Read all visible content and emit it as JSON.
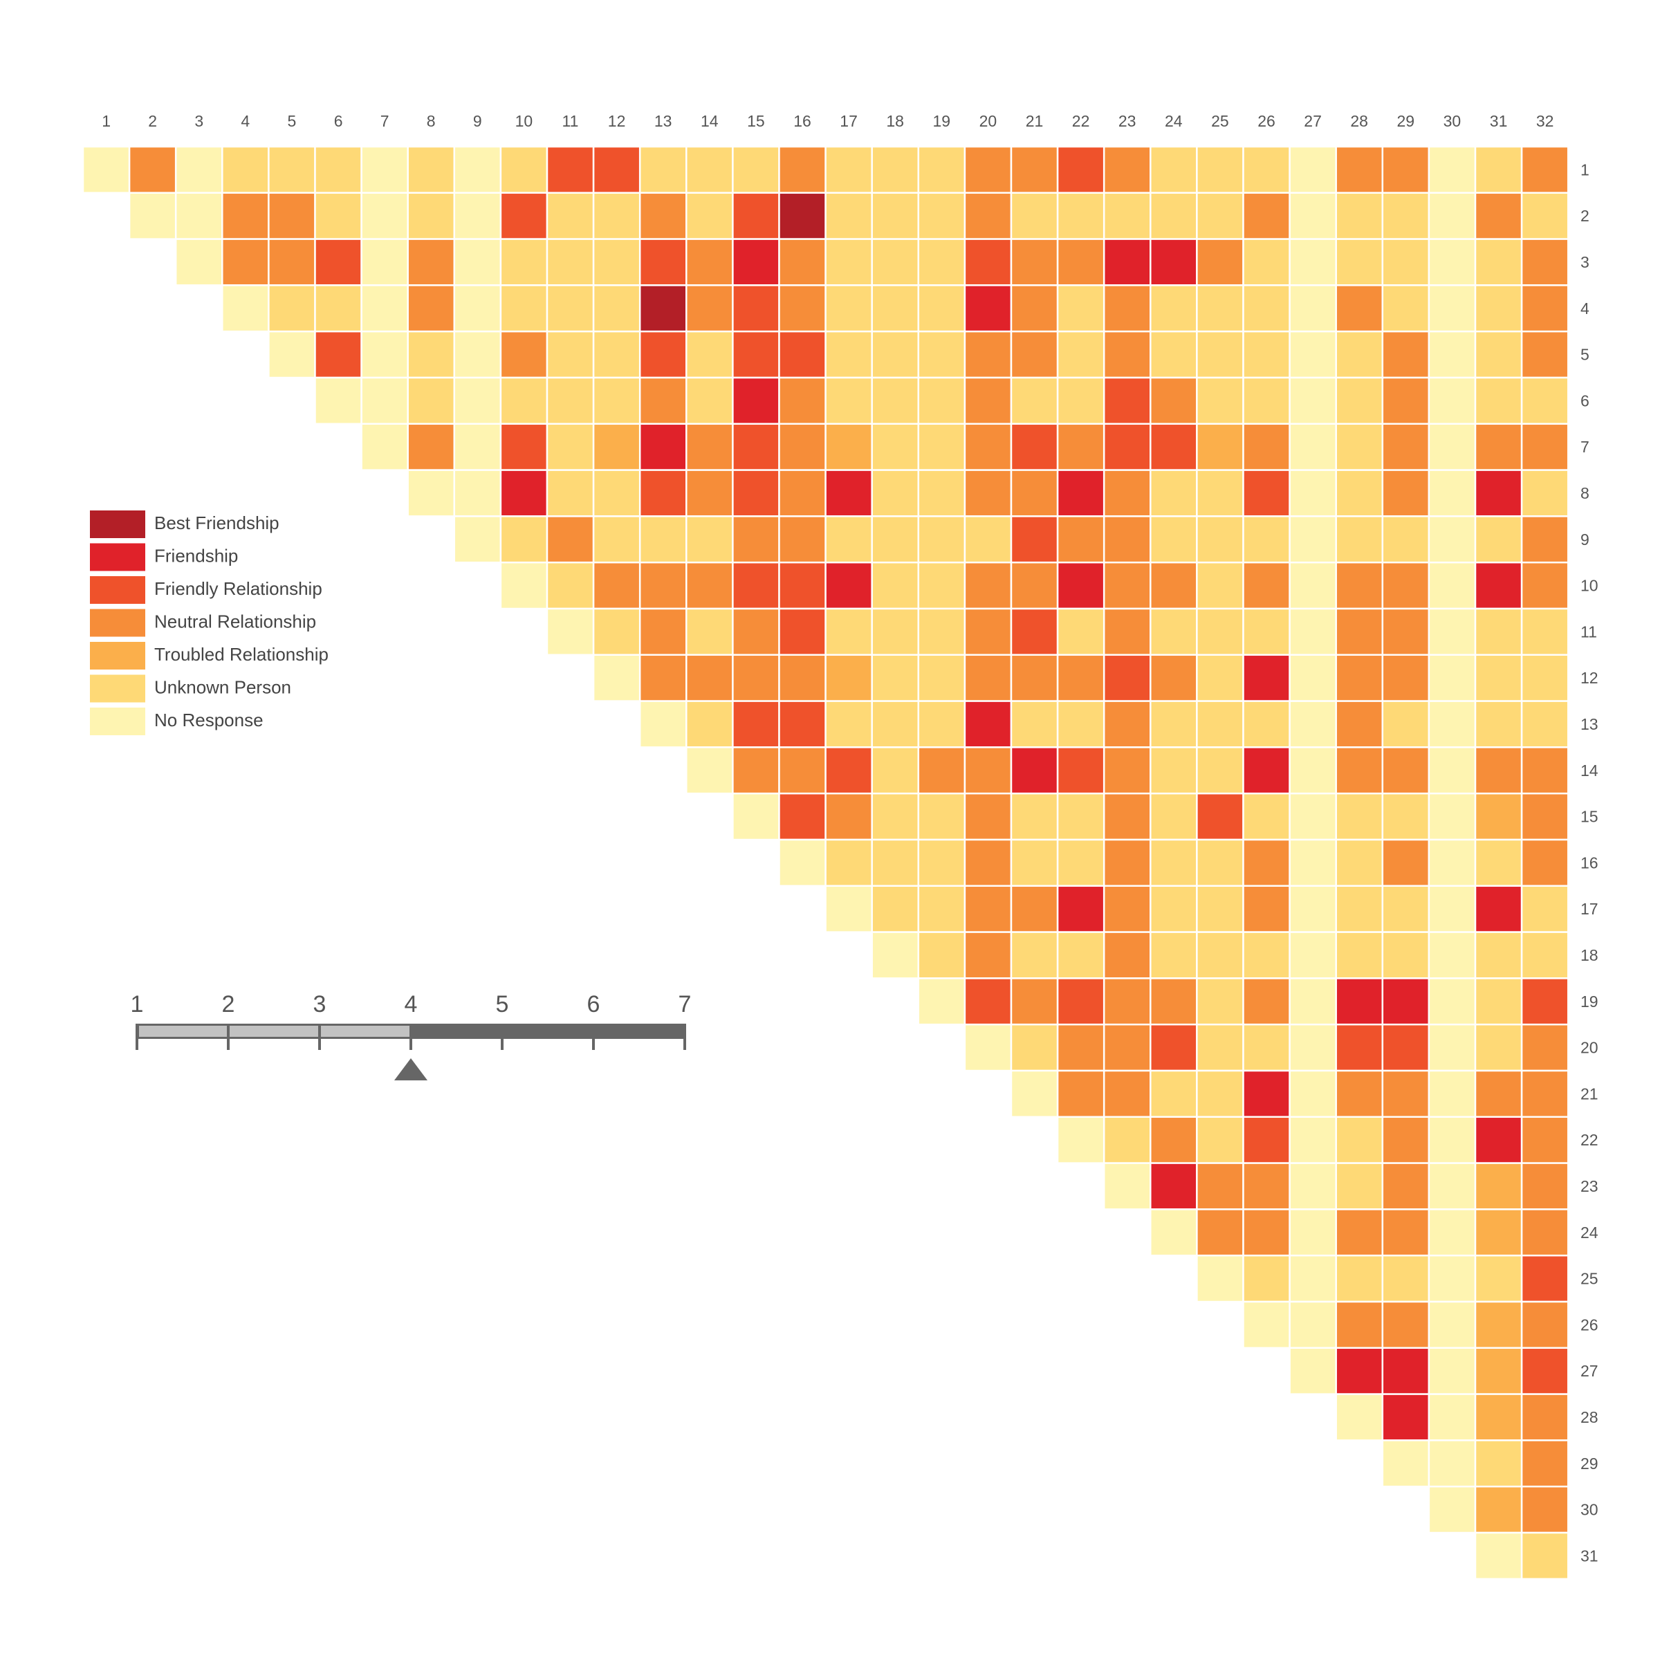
{
  "chart_data": {
    "type": "heatmap",
    "x_labels": [
      "1",
      "2",
      "3",
      "4",
      "5",
      "6",
      "7",
      "8",
      "9",
      "10",
      "11",
      "12",
      "13",
      "14",
      "15",
      "16",
      "17",
      "18",
      "19",
      "20",
      "21",
      "22",
      "23",
      "24",
      "25",
      "26",
      "27",
      "28",
      "29",
      "30",
      "31",
      "32"
    ],
    "y_labels": [
      "1",
      "2",
      "3",
      "4",
      "5",
      "6",
      "7",
      "8",
      "9",
      "10",
      "11",
      "12",
      "13",
      "14",
      "15",
      "16",
      "17",
      "18",
      "19",
      "20",
      "21",
      "22",
      "23",
      "24",
      "25",
      "26",
      "27",
      "28",
      "29",
      "30",
      "31"
    ],
    "legend": [
      {
        "label": "Best Friendship",
        "value": 7,
        "color": "#B31F27"
      },
      {
        "label": "Friendship",
        "value": 6,
        "color": "#E0222A"
      },
      {
        "label": "Friendly Relationship",
        "value": 5,
        "color": "#EF522B"
      },
      {
        "label": "Neutral Relationship",
        "value": 4,
        "color": "#F68D39"
      },
      {
        "label": "Troubled Relationship",
        "value": 3,
        "color": "#FBAF4B"
      },
      {
        "label": "Unknown Person",
        "value": 2,
        "color": "#FED976"
      },
      {
        "label": "No Response",
        "value": 1,
        "color": "#FEF4B1"
      }
    ],
    "rows": [
      [
        1,
        4,
        1,
        2,
        2,
        2,
        1,
        2,
        1,
        2,
        5,
        5,
        2,
        2,
        2,
        4,
        2,
        2,
        2,
        4,
        4,
        5,
        4,
        2,
        2,
        2,
        1,
        4,
        4,
        1,
        2,
        4
      ],
      [
        1,
        1,
        4,
        4,
        2,
        1,
        2,
        1,
        5,
        2,
        2,
        4,
        2,
        5,
        7,
        2,
        2,
        2,
        4,
        2,
        2,
        2,
        2,
        2,
        4,
        1,
        2,
        2,
        1,
        4,
        2
      ],
      [
        1,
        4,
        4,
        5,
        1,
        4,
        1,
        2,
        2,
        2,
        5,
        4,
        6,
        4,
        2,
        2,
        2,
        5,
        4,
        4,
        6,
        6,
        4,
        2,
        1,
        2,
        2,
        1,
        2,
        4
      ],
      [
        1,
        2,
        2,
        1,
        4,
        1,
        2,
        2,
        2,
        7,
        4,
        5,
        4,
        2,
        2,
        2,
        6,
        4,
        2,
        4,
        2,
        2,
        2,
        1,
        4,
        2,
        1,
        2,
        4
      ],
      [
        1,
        5,
        1,
        2,
        1,
        4,
        2,
        2,
        5,
        2,
        5,
        5,
        2,
        2,
        2,
        4,
        4,
        2,
        4,
        2,
        2,
        2,
        1,
        2,
        4,
        1,
        2,
        4
      ],
      [
        1,
        1,
        2,
        1,
        2,
        2,
        2,
        4,
        2,
        6,
        4,
        2,
        2,
        2,
        4,
        2,
        2,
        5,
        4,
        2,
        2,
        1,
        2,
        4,
        1,
        2,
        2
      ],
      [
        1,
        4,
        1,
        5,
        2,
        3,
        6,
        4,
        5,
        4,
        3,
        2,
        2,
        4,
        5,
        4,
        5,
        5,
        3,
        4,
        1,
        2,
        4,
        1,
        4,
        4
      ],
      [
        1,
        1,
        6,
        2,
        2,
        5,
        4,
        5,
        4,
        6,
        2,
        2,
        4,
        4,
        6,
        4,
        2,
        2,
        5,
        1,
        2,
        4,
        1,
        6,
        2
      ],
      [
        1,
        2,
        4,
        2,
        2,
        2,
        4,
        4,
        2,
        2,
        2,
        2,
        5,
        4,
        4,
        2,
        2,
        2,
        1,
        2,
        2,
        1,
        2,
        4
      ],
      [
        1,
        2,
        4,
        4,
        4,
        5,
        5,
        6,
        2,
        2,
        4,
        4,
        6,
        4,
        4,
        2,
        4,
        1,
        4,
        4,
        1,
        6,
        4
      ],
      [
        1,
        2,
        4,
        2,
        4,
        5,
        2,
        2,
        2,
        4,
        5,
        2,
        4,
        2,
        2,
        2,
        1,
        4,
        4,
        1,
        2,
        2
      ],
      [
        1,
        4,
        4,
        4,
        4,
        3,
        2,
        2,
        4,
        4,
        4,
        5,
        4,
        2,
        6,
        1,
        4,
        4,
        1,
        2,
        2
      ],
      [
        1,
        2,
        5,
        5,
        2,
        2,
        2,
        6,
        2,
        2,
        4,
        2,
        2,
        2,
        1,
        4,
        2,
        1,
        2,
        2
      ],
      [
        1,
        4,
        4,
        5,
        2,
        4,
        4,
        6,
        5,
        4,
        2,
        2,
        6,
        1,
        4,
        4,
        1,
        4,
        4
      ],
      [
        1,
        5,
        4,
        2,
        2,
        4,
        2,
        2,
        4,
        2,
        5,
        2,
        1,
        2,
        2,
        1,
        3,
        4
      ],
      [
        1,
        2,
        2,
        2,
        4,
        2,
        2,
        4,
        2,
        2,
        4,
        1,
        2,
        4,
        1,
        2,
        4
      ],
      [
        1,
        2,
        2,
        4,
        4,
        6,
        4,
        2,
        2,
        4,
        1,
        2,
        2,
        1,
        6,
        2
      ],
      [
        1,
        2,
        4,
        2,
        2,
        4,
        2,
        2,
        2,
        1,
        2,
        2,
        1,
        2,
        2
      ],
      [
        1,
        5,
        4,
        5,
        4,
        4,
        2,
        4,
        1,
        6,
        6,
        1,
        2,
        5
      ],
      [
        1,
        2,
        4,
        4,
        5,
        2,
        2,
        1,
        5,
        5,
        1,
        2,
        4
      ],
      [
        1,
        4,
        4,
        2,
        2,
        6,
        1,
        4,
        4,
        1,
        4,
        4
      ],
      [
        1,
        2,
        4,
        2,
        5,
        1,
        2,
        4,
        1,
        6,
        4
      ],
      [
        1,
        6,
        4,
        4,
        1,
        2,
        4,
        1,
        3,
        4
      ],
      [
        1,
        4,
        4,
        1,
        4,
        4,
        1,
        3,
        4
      ],
      [
        1,
        2,
        1,
        2,
        2,
        1,
        2,
        5
      ],
      [
        1,
        1,
        4,
        4,
        1,
        3,
        4
      ],
      [
        1,
        6,
        6,
        1,
        3,
        5
      ],
      [
        1,
        6,
        1,
        3,
        4
      ],
      [
        1,
        1,
        2,
        4
      ],
      [
        1,
        3,
        4
      ],
      [
        1,
        2
      ]
    ],
    "slider": {
      "ticks": [
        "1",
        "2",
        "3",
        "4",
        "5",
        "6",
        "7"
      ],
      "value": 4,
      "min": 1,
      "max": 7
    }
  }
}
